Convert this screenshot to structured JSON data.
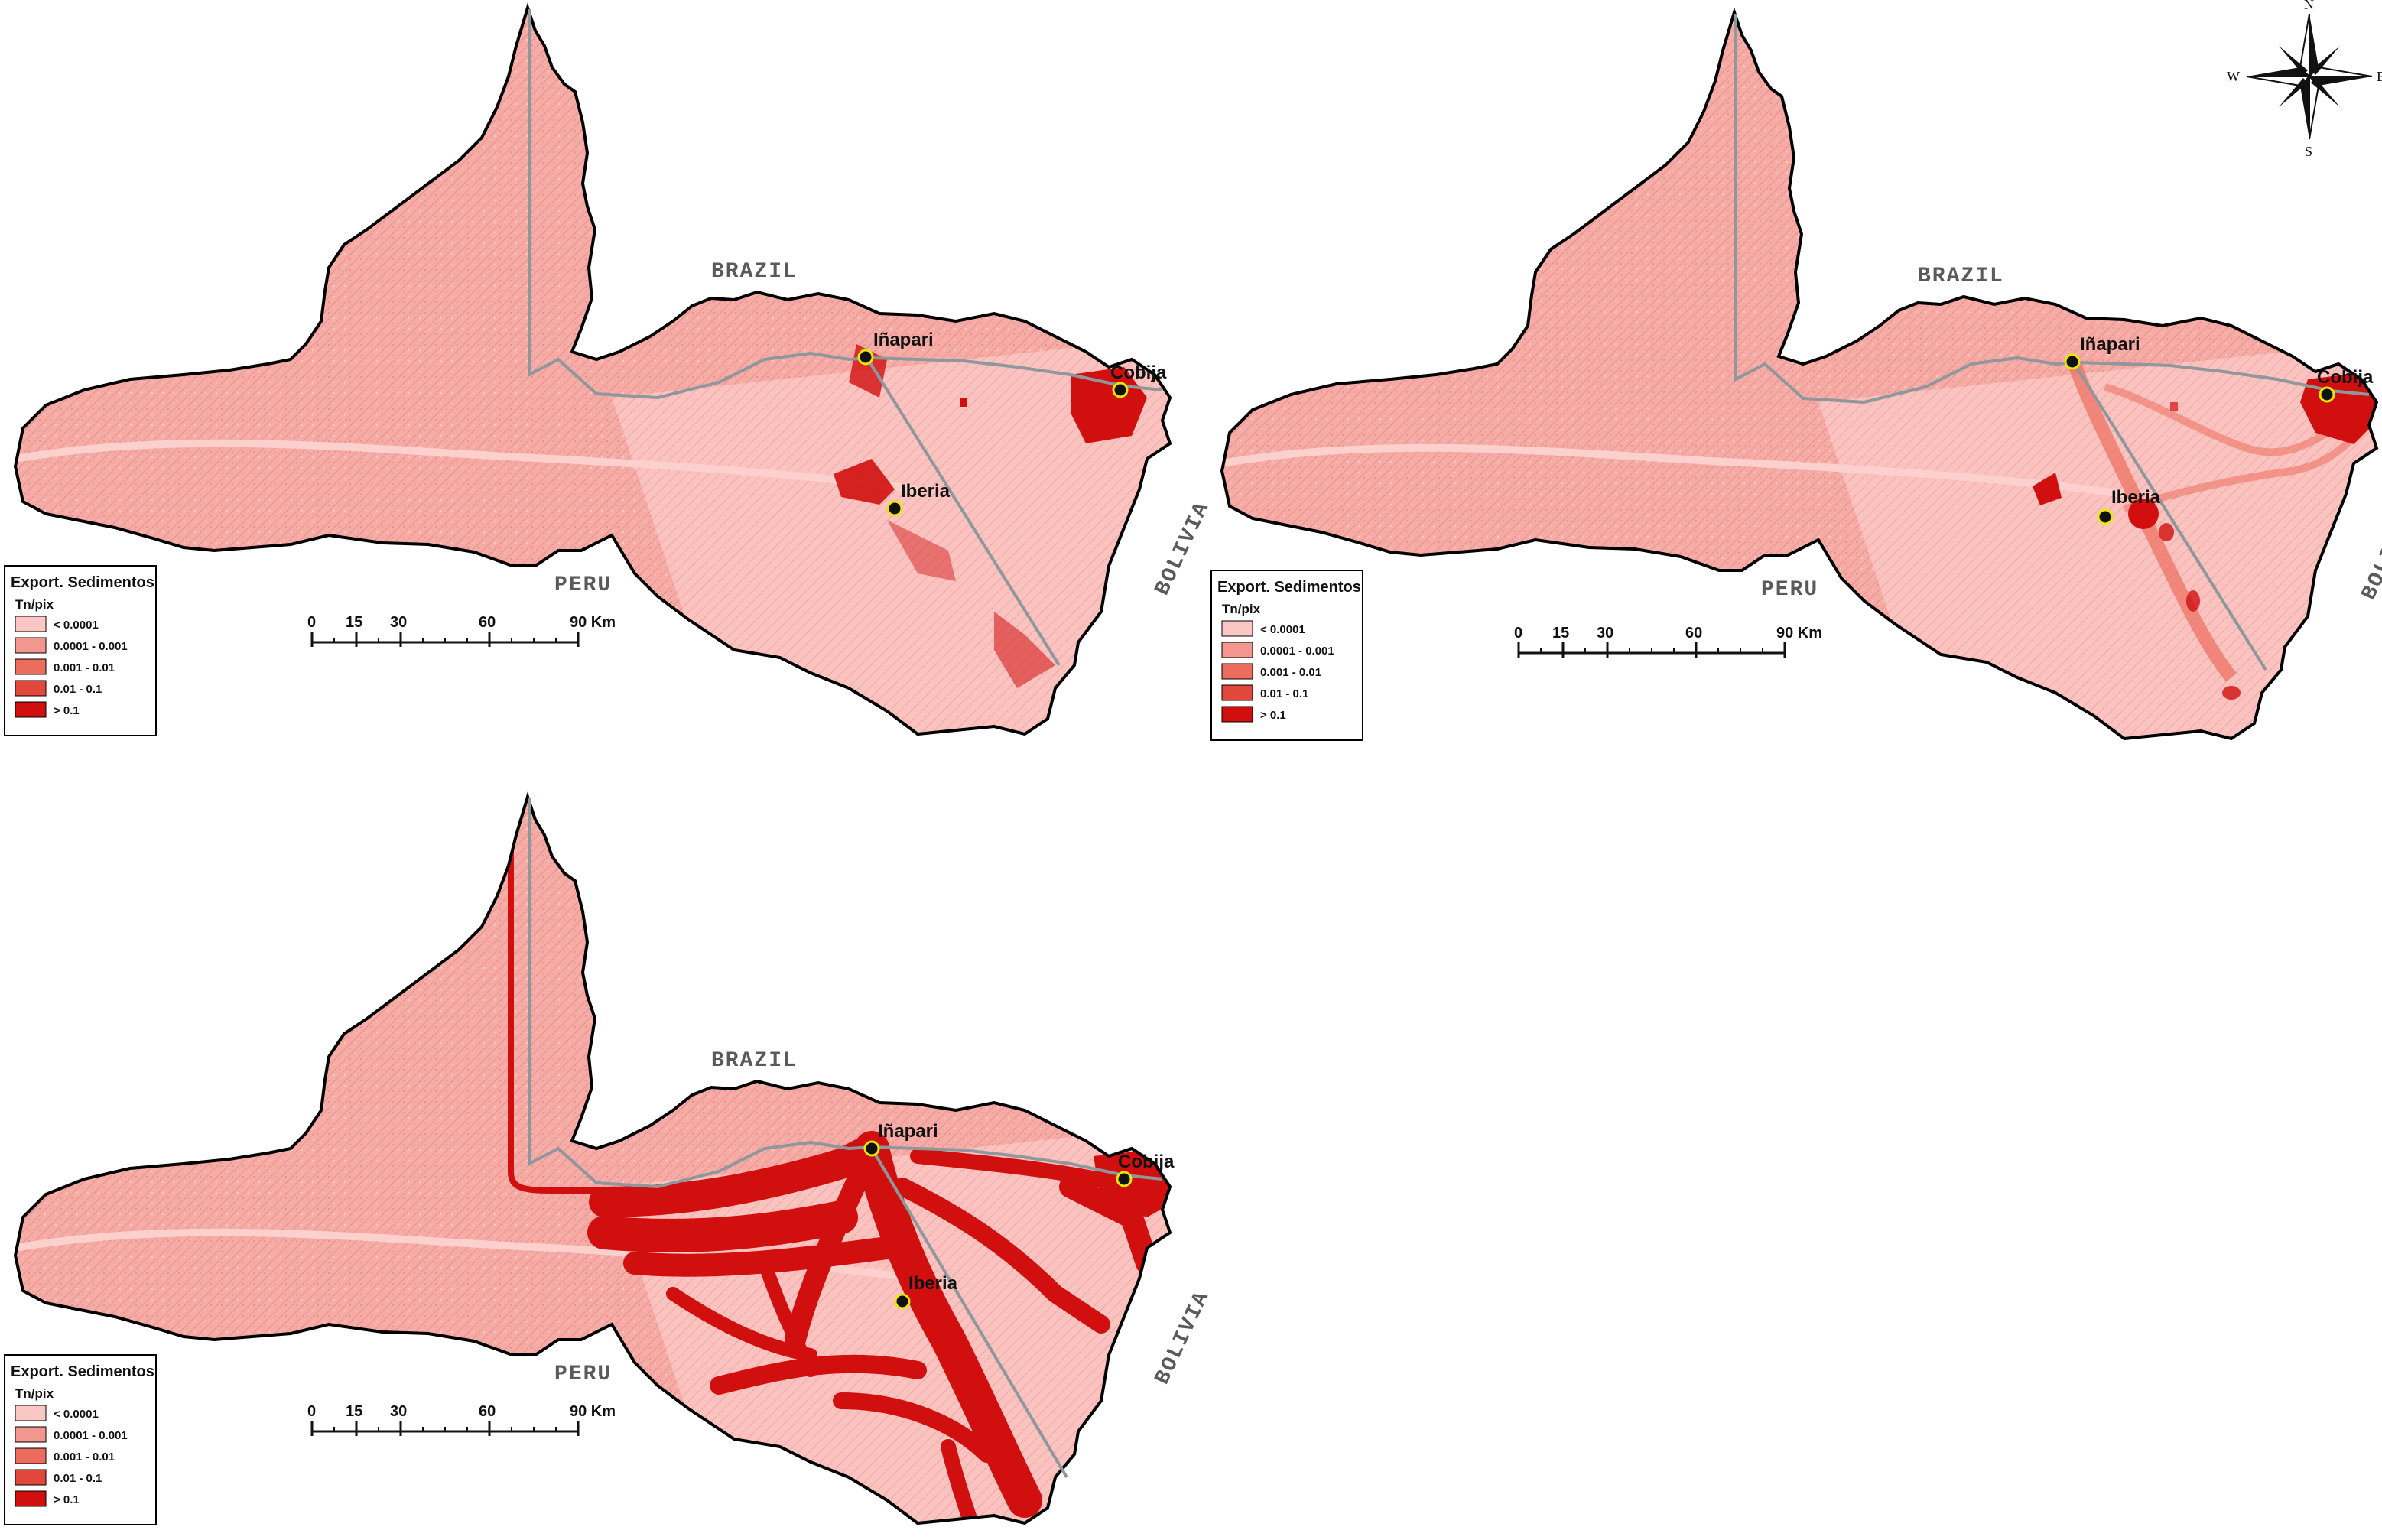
{
  "panels": [
    {
      "id": "panel-top-left",
      "labels": {
        "brazil": "BRAZIL",
        "peru": "PERU",
        "bolivia": "BOLIVIA"
      },
      "cities": [
        {
          "name": "Iñapari"
        },
        {
          "name": "Cobija"
        },
        {
          "name": "Iberia"
        }
      ],
      "legend": {
        "title": "Export. Sedimentos",
        "unit": "Tn/pix",
        "classes": [
          {
            "label": "< 0.0001",
            "color": "#fbc7c4"
          },
          {
            "label": "0.0001 - 0.001",
            "color": "#f3968d"
          },
          {
            "label": "0.001 - 0.01",
            "color": "#ec6d5e"
          },
          {
            "label": "0.01 - 0.1",
            "color": "#e1473a"
          },
          {
            "label": "> 0.1",
            "color": "#d10f0f"
          }
        ]
      },
      "scale": {
        "ticks": [
          "0",
          "15",
          "30",
          "60",
          "90 Km"
        ]
      }
    },
    {
      "id": "panel-top-right",
      "labels": {
        "brazil": "BRAZIL",
        "peru": "PERU",
        "bolivia": "BOLIVIA"
      },
      "cities": [
        {
          "name": "Iñapari"
        },
        {
          "name": "Cobija"
        },
        {
          "name": "Iberia"
        }
      ],
      "legend": {
        "title": "Export. Sedimentos",
        "unit": "Tn/pix",
        "classes": [
          {
            "label": "< 0.0001",
            "color": "#fbc7c4"
          },
          {
            "label": "0.0001 - 0.001",
            "color": "#f3968d"
          },
          {
            "label": "0.001 - 0.01",
            "color": "#ec6d5e"
          },
          {
            "label": "0.01 - 0.1",
            "color": "#e1473a"
          },
          {
            "label": "> 0.1",
            "color": "#d10f0f"
          }
        ]
      },
      "scale": {
        "ticks": [
          "0",
          "15",
          "30",
          "60",
          "90 Km"
        ]
      }
    },
    {
      "id": "panel-bottom-left",
      "labels": {
        "brazil": "BRAZIL",
        "peru": "PERU",
        "bolivia": "BOLIVIA"
      },
      "cities": [
        {
          "name": "Iñapari"
        },
        {
          "name": "Cobija"
        },
        {
          "name": "Iberia"
        }
      ],
      "legend": {
        "title": "Export. Sedimentos",
        "unit": "Tn/pix",
        "classes": [
          {
            "label": "< 0.0001",
            "color": "#fbc7c4"
          },
          {
            "label": "0.0001 - 0.001",
            "color": "#f3968d"
          },
          {
            "label": "0.001 - 0.01",
            "color": "#ec6d5e"
          },
          {
            "label": "0.01 - 0.1",
            "color": "#e1473a"
          },
          {
            "label": "> 0.1",
            "color": "#d10f0f"
          }
        ]
      },
      "scale": {
        "ticks": [
          "0",
          "15",
          "30",
          "60",
          "90 Km"
        ]
      }
    }
  ],
  "compass": {
    "n": "N",
    "s": "S",
    "e": "E",
    "w": "W",
    "icon": "compass-rose-icon"
  },
  "colors": {
    "base_fill": "#f6aca6",
    "light_fill": "#fbc7c4",
    "high": "#d10f0f",
    "border_river": "#8e979b",
    "outline": "#000000"
  }
}
